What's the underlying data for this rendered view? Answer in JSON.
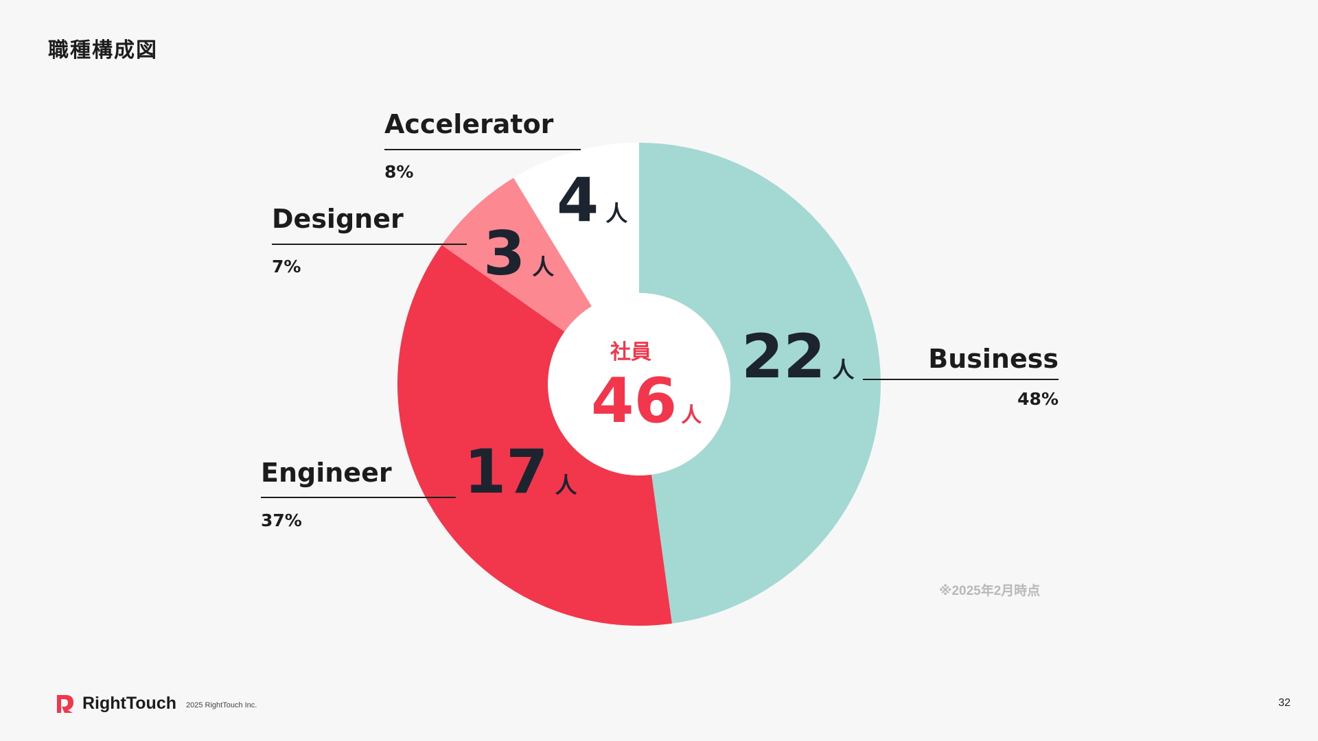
{
  "page": {
    "title": "職種構成図",
    "note": "※2025年2月時点",
    "page_number": "32"
  },
  "footer": {
    "brand": "RightTouch",
    "copyright": "2025 RightTouch Inc."
  },
  "center": {
    "label": "社員",
    "total": "46",
    "unit": "人"
  },
  "chart_data": {
    "type": "pie",
    "donut": true,
    "unit": "人",
    "slices": [
      {
        "name": "Business",
        "value": 22,
        "percent": "48%",
        "color": "#a3d8d3"
      },
      {
        "name": "Engineer",
        "value": 17,
        "percent": "37%",
        "color": "#f2364b"
      },
      {
        "name": "Designer",
        "value": 3,
        "percent": "7%",
        "color": "#fc8892"
      },
      {
        "name": "Accelerator",
        "value": 4,
        "percent": "8%",
        "color": "#ffffff"
      }
    ],
    "total": 46,
    "start": "top, clockwise"
  }
}
